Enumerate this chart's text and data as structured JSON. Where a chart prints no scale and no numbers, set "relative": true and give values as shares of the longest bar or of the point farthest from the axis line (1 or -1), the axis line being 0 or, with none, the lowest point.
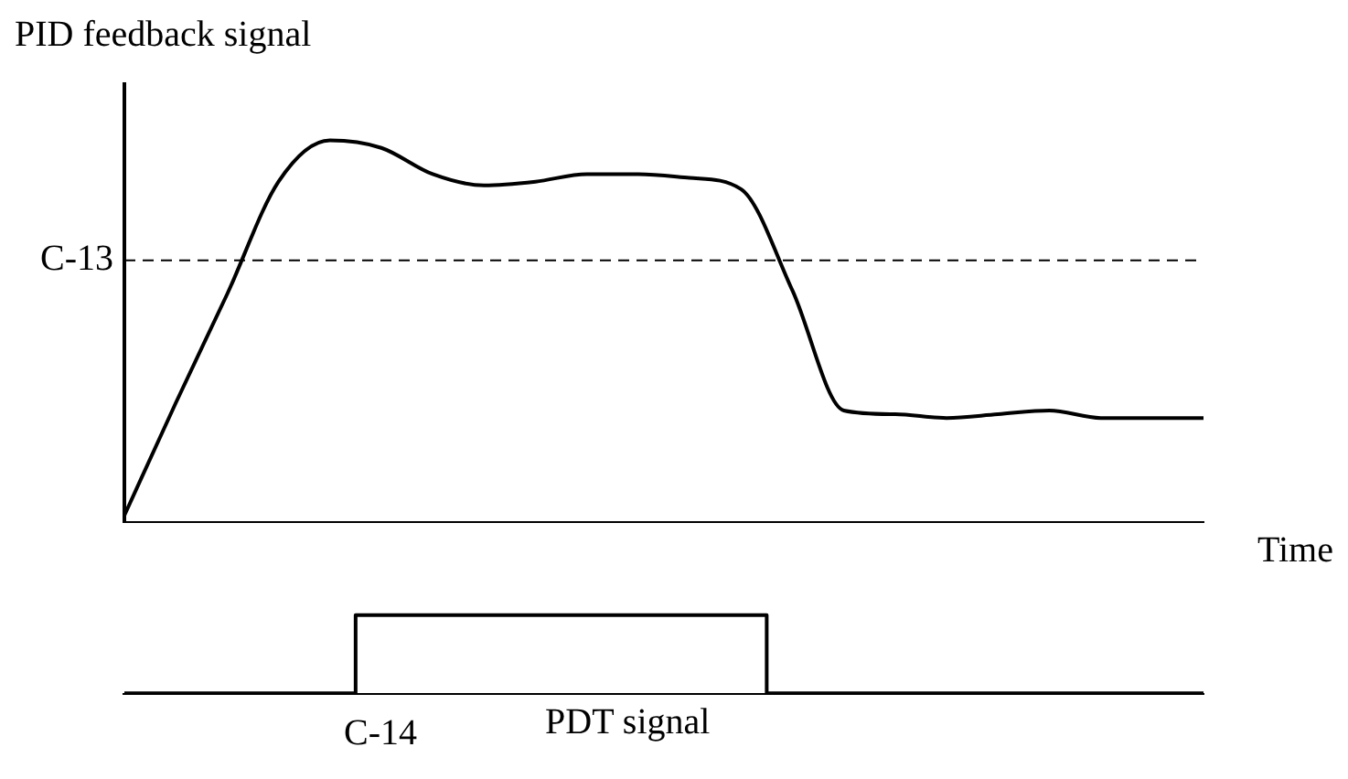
{
  "chart_data": [
    {
      "type": "line",
      "relative": true,
      "ylabel": "PID feedback signal",
      "xlabel": "Time",
      "tick_labels": false,
      "grid": false,
      "legend": false,
      "marker": "none",
      "line_style": "solid",
      "categories": [
        null,
        null,
        null,
        null,
        null,
        null,
        null,
        null,
        null,
        null,
        null,
        null,
        null,
        null,
        null,
        null,
        null,
        null,
        null,
        null,
        null,
        null
      ],
      "series": [
        {
          "color": "#000000",
          "values": [
            0,
            0.3,
            0.59,
            0.89,
            1,
            0.98,
            0.91,
            0.88,
            0.89,
            0.91,
            0.91,
            0.9,
            0.87,
            0.6,
            0.28,
            0.27,
            0.26,
            0.27,
            0.28,
            0.26,
            0.26,
            0.26
          ]
        }
      ],
      "ref_lines": [
        {
          "axis": "y",
          "value": 0.68,
          "label": "C-13",
          "line_style": "dashed",
          "color": "#000000"
        }
      ]
    },
    {
      "type": "step",
      "relative": true,
      "xlabel": "PDT signal",
      "tick_labels": false,
      "grid": false,
      "legend": false,
      "marker": "none",
      "line_style": "solid",
      "annotations": [
        "C-14"
      ],
      "categories": [
        null,
        null,
        null,
        null,
        null,
        null,
        null,
        null,
        null,
        null,
        null,
        null,
        null,
        null,
        null,
        null,
        null,
        null,
        null,
        null,
        null,
        null
      ],
      "series": [
        {
          "color": "#000000",
          "values": [
            0,
            0,
            0,
            0,
            0,
            1,
            1,
            1,
            1,
            1,
            1,
            1,
            1,
            0,
            0,
            0,
            0,
            0,
            0,
            0,
            0,
            0
          ]
        }
      ]
    }
  ]
}
